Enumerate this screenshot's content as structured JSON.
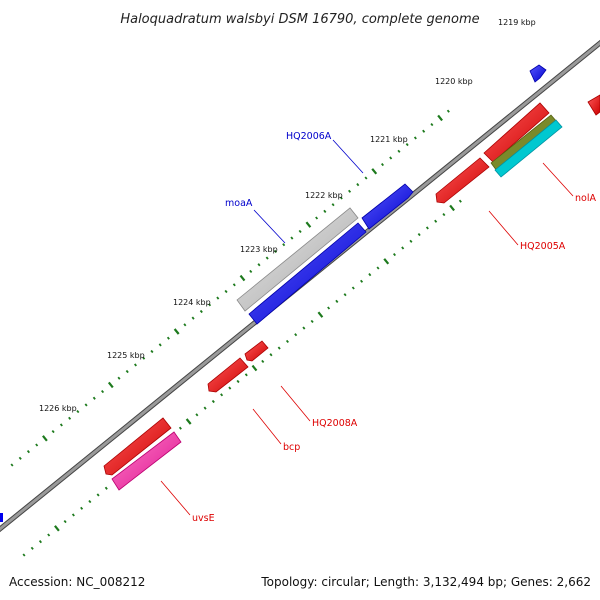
{
  "title": "Haloquadratum walsbyi DSM 16790, complete genome",
  "footer": {
    "accession": "Accession: NC_008212",
    "summary": "Topology: circular; Length: 3,132,494 bp; Genes: 2,662"
  },
  "colors": {
    "backbone": "#8a8a8a",
    "tick": "#1d7a1d",
    "forward_gene": "#0000ee",
    "reverse_gene": "#ee0000",
    "rna_gene": "#c8c8c8",
    "feature_olive": "#7a8a2a",
    "feature_cyan": "#00c8d0",
    "feature_pink": "#ee2fa0",
    "label_forward": "#0000cc",
    "label_reverse": "#dd0000"
  },
  "kbp_labels": [
    "1219 kbp",
    "1220 kbp",
    "1221 kbp",
    "1222 kbp",
    "1223 kbp",
    "1224 kbp",
    "1225 kbp",
    "1226 kbp"
  ],
  "gene_labels": {
    "forward": [
      "HQ2006A",
      "moaA"
    ],
    "reverse": [
      "nolA",
      "HQ2005A",
      "HQ2008A",
      "bcp",
      "uvsE"
    ]
  }
}
